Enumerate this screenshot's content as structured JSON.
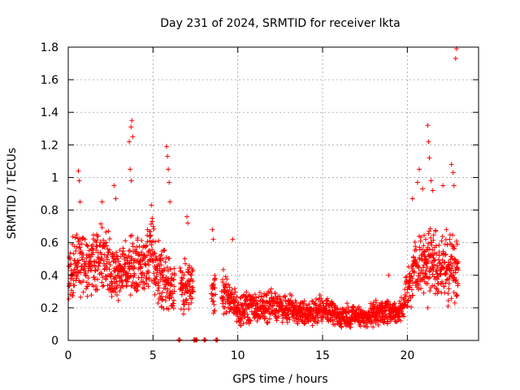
{
  "chart_data": {
    "type": "scatter",
    "title": "Day 231 of 2024, SRMTID for receiver lkta",
    "xlabel": "GPS time / hours",
    "ylabel": "SRMTID / TECUs",
    "xlim": [
      0,
      24.2
    ],
    "ylim": [
      0,
      1.8
    ],
    "xticks": [
      0,
      5,
      10,
      15,
      20
    ],
    "xtick_labels": [
      "0",
      "5",
      "10",
      "15",
      "20"
    ],
    "yticks": [
      0,
      0.2,
      0.4,
      0.6,
      0.8,
      1.0,
      1.2,
      1.4,
      1.6,
      1.8
    ],
    "ytick_labels": [
      "0",
      "0.2",
      "0.4",
      "0.6",
      "0.8",
      "1",
      "1.2",
      "1.4",
      "1.6",
      "1.8"
    ],
    "grid": true,
    "marker": "+",
    "color": "#ff0000",
    "envelope": {
      "description": "approximate trend used to represent dense point cloud (hour, typical SRMTID, spread)",
      "points": [
        [
          0.0,
          0.38,
          0.14
        ],
        [
          0.5,
          0.5,
          0.16
        ],
        [
          1.0,
          0.45,
          0.16
        ],
        [
          1.5,
          0.48,
          0.16
        ],
        [
          2.0,
          0.52,
          0.18
        ],
        [
          2.5,
          0.45,
          0.16
        ],
        [
          3.0,
          0.42,
          0.15
        ],
        [
          3.5,
          0.45,
          0.17
        ],
        [
          4.0,
          0.45,
          0.16
        ],
        [
          4.5,
          0.48,
          0.16
        ],
        [
          5.0,
          0.52,
          0.18
        ],
        [
          5.5,
          0.38,
          0.15
        ],
        [
          6.0,
          0.35,
          0.14
        ],
        [
          6.5,
          0.33,
          0.13
        ],
        [
          7.0,
          0.35,
          0.14
        ],
        [
          7.5,
          0.3,
          0.1
        ],
        [
          8.0,
          0.28,
          0.1
        ],
        [
          8.5,
          0.3,
          0.11
        ],
        [
          9.0,
          0.3,
          0.11
        ],
        [
          9.5,
          0.28,
          0.1
        ],
        [
          10.0,
          0.18,
          0.07
        ],
        [
          10.5,
          0.2,
          0.08
        ],
        [
          11.0,
          0.2,
          0.08
        ],
        [
          11.5,
          0.2,
          0.07
        ],
        [
          12.0,
          0.22,
          0.08
        ],
        [
          12.5,
          0.2,
          0.07
        ],
        [
          13.0,
          0.2,
          0.07
        ],
        [
          13.5,
          0.18,
          0.07
        ],
        [
          14.0,
          0.16,
          0.06
        ],
        [
          14.5,
          0.17,
          0.06
        ],
        [
          15.0,
          0.2,
          0.07
        ],
        [
          15.5,
          0.17,
          0.06
        ],
        [
          16.0,
          0.14,
          0.05
        ],
        [
          16.5,
          0.15,
          0.06
        ],
        [
          17.0,
          0.15,
          0.05
        ],
        [
          17.5,
          0.14,
          0.05
        ],
        [
          18.0,
          0.16,
          0.06
        ],
        [
          18.5,
          0.18,
          0.07
        ],
        [
          19.0,
          0.18,
          0.06
        ],
        [
          19.5,
          0.17,
          0.05
        ],
        [
          20.0,
          0.3,
          0.1
        ],
        [
          20.5,
          0.45,
          0.15
        ],
        [
          21.0,
          0.5,
          0.16
        ],
        [
          21.5,
          0.5,
          0.18
        ],
        [
          22.0,
          0.45,
          0.16
        ],
        [
          22.5,
          0.45,
          0.16
        ],
        [
          23.0,
          0.45,
          0.15
        ]
      ]
    },
    "spikes": [
      [
        0.6,
        1.04
      ],
      [
        0.65,
        0.98
      ],
      [
        0.7,
        0.85
      ],
      [
        2.0,
        0.85
      ],
      [
        2.7,
        0.95
      ],
      [
        2.8,
        0.87
      ],
      [
        3.6,
        1.22
      ],
      [
        3.7,
        1.31
      ],
      [
        3.75,
        1.35
      ],
      [
        3.8,
        1.25
      ],
      [
        3.65,
        1.05
      ],
      [
        3.72,
        0.98
      ],
      [
        4.9,
        0.83
      ],
      [
        4.95,
        0.75
      ],
      [
        5.8,
        1.19
      ],
      [
        5.85,
        1.13
      ],
      [
        5.9,
        1.05
      ],
      [
        5.95,
        0.97
      ],
      [
        6.0,
        0.85
      ],
      [
        7.0,
        0.76
      ],
      [
        7.05,
        0.72
      ],
      [
        8.5,
        0.68
      ],
      [
        8.55,
        0.62
      ],
      [
        9.7,
        0.62
      ],
      [
        18.9,
        0.4
      ],
      [
        20.3,
        0.87
      ],
      [
        20.6,
        0.97
      ],
      [
        20.7,
        1.05
      ],
      [
        20.9,
        0.93
      ],
      [
        21.2,
        1.32
      ],
      [
        21.25,
        1.22
      ],
      [
        21.3,
        1.12
      ],
      [
        21.4,
        0.98
      ],
      [
        21.5,
        0.92
      ],
      [
        22.1,
        0.95
      ],
      [
        22.3,
        0.68
      ],
      [
        22.5,
        0.62
      ],
      [
        22.6,
        1.08
      ],
      [
        22.7,
        1.03
      ],
      [
        22.75,
        0.95
      ],
      [
        22.85,
        1.73
      ],
      [
        22.9,
        1.79
      ],
      [
        21.2,
        0.2
      ],
      [
        22.4,
        0.21
      ],
      [
        22.8,
        0.23
      ]
    ],
    "baseline_markers_x": [
      6.55,
      7.45,
      7.55,
      8.05,
      8.75
    ]
  }
}
